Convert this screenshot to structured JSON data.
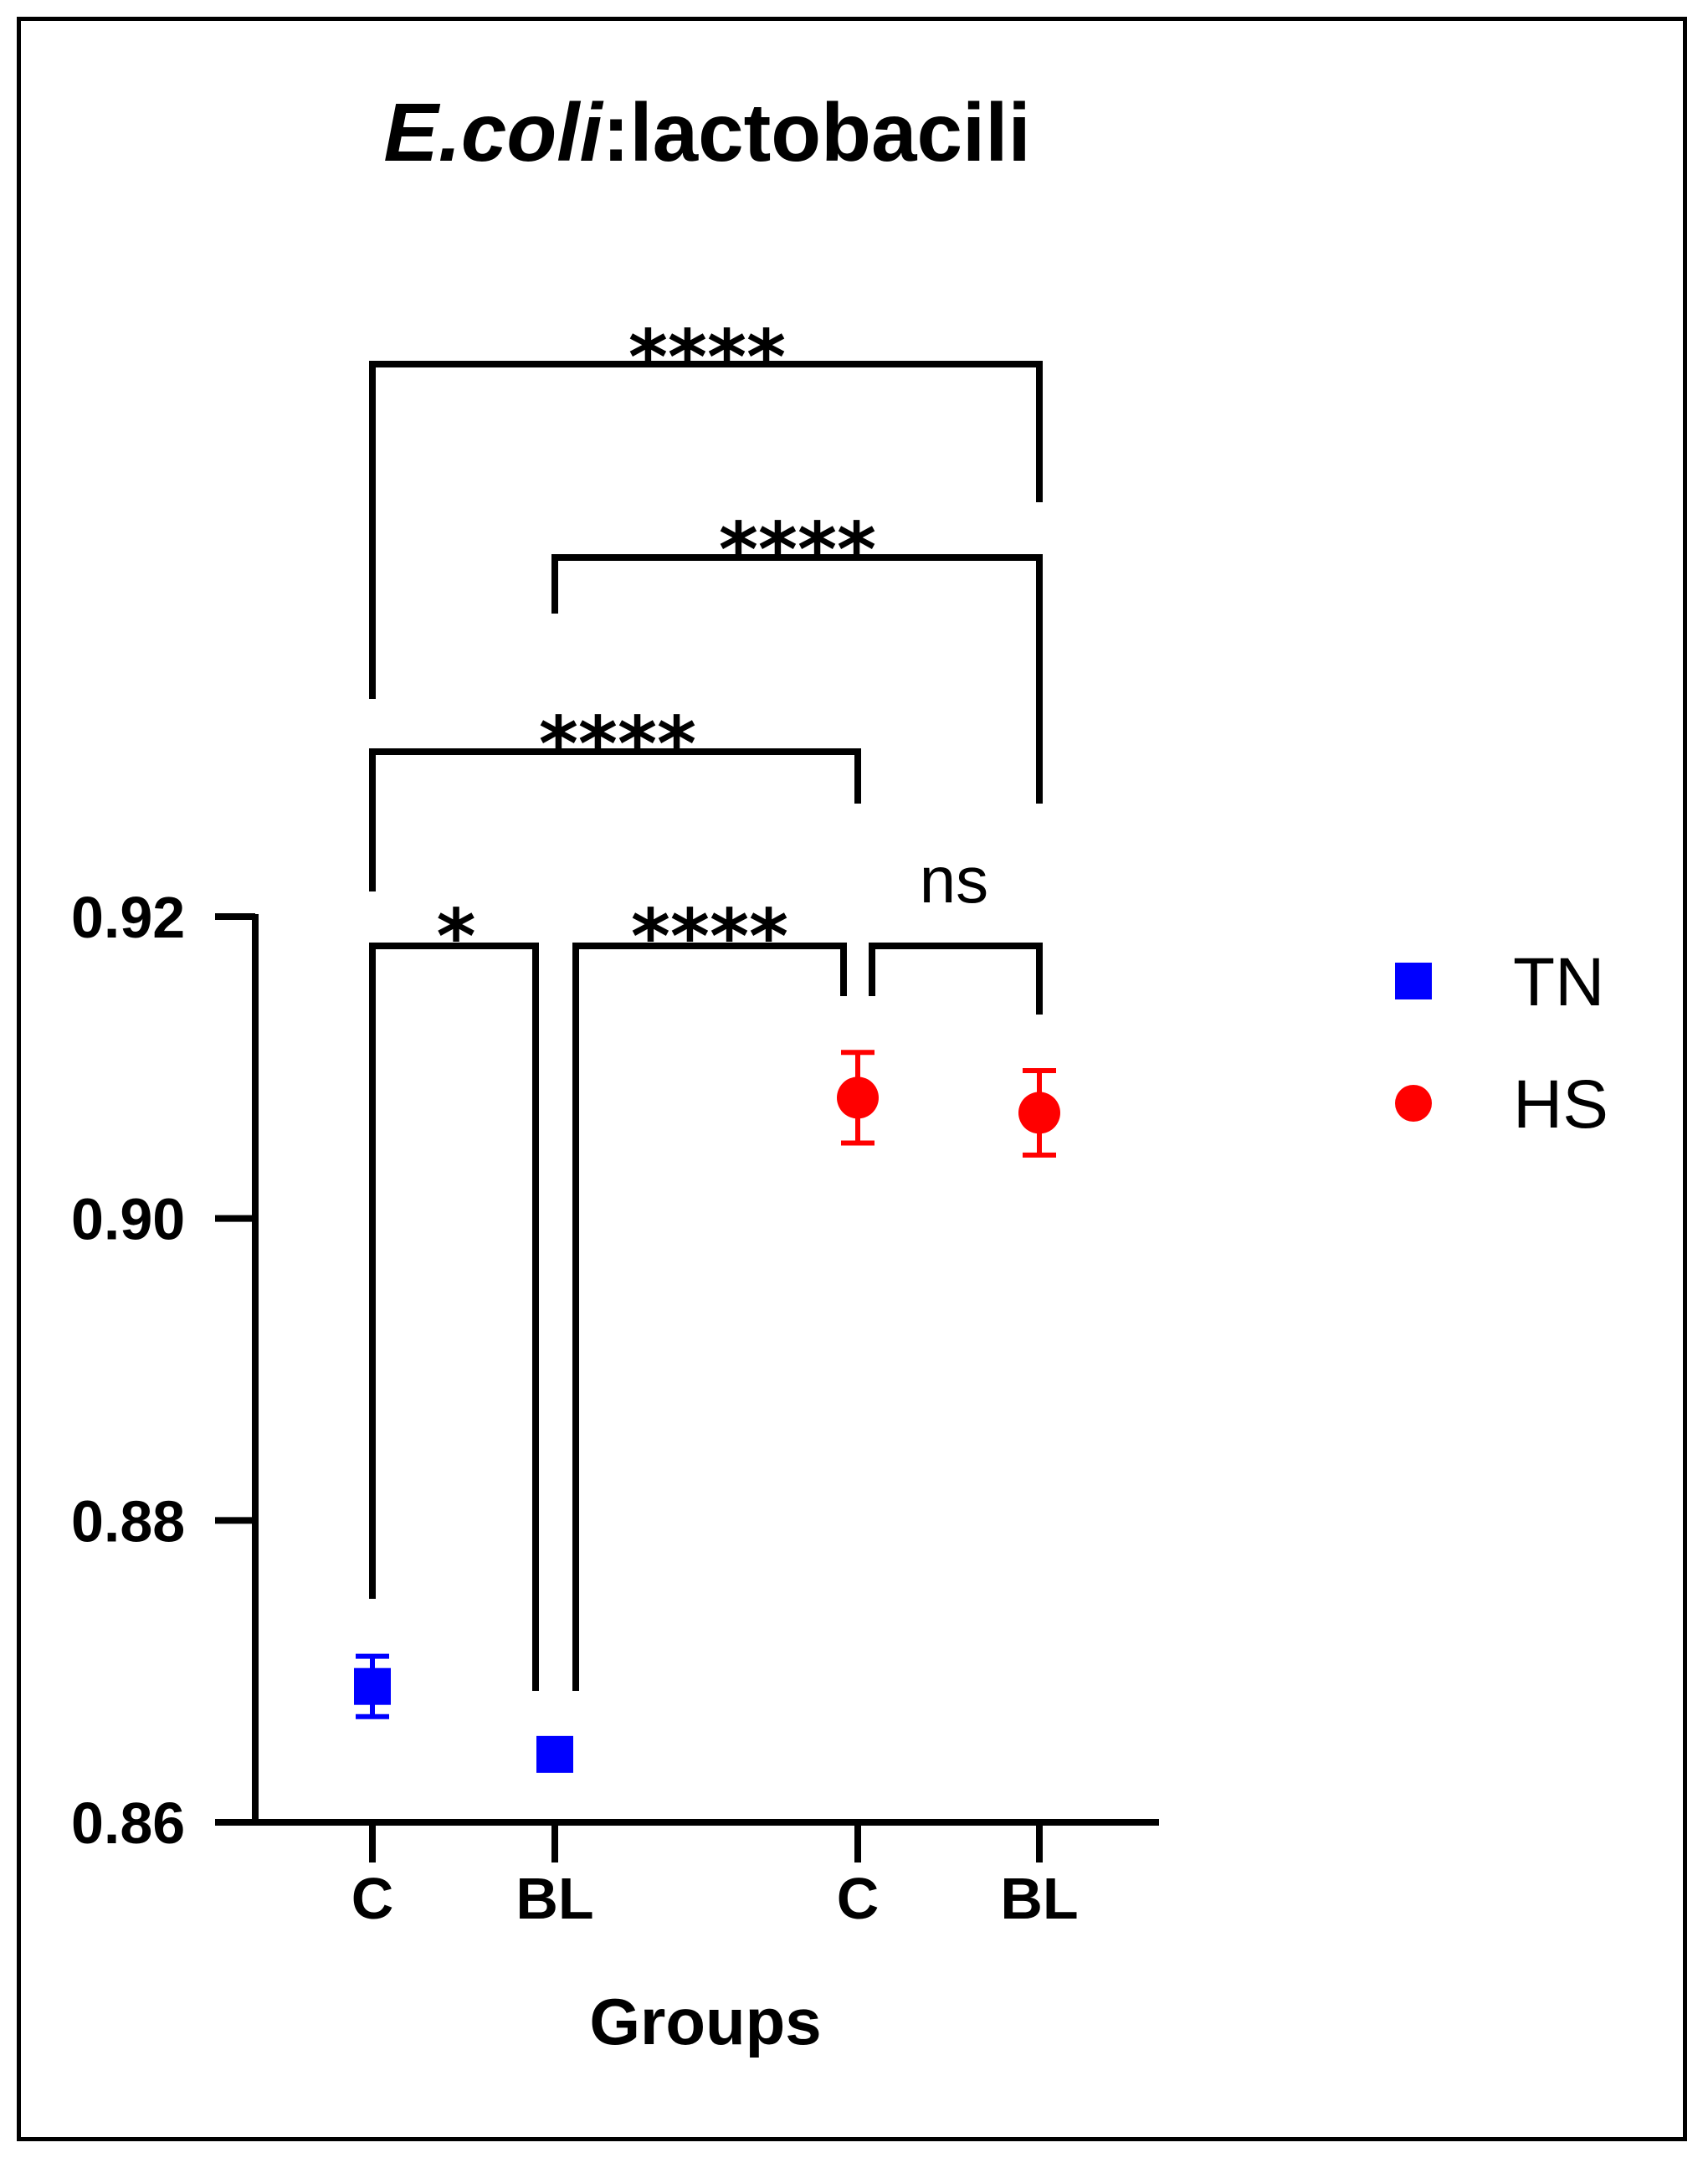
{
  "chart_data": {
    "type": "scatter",
    "title_italic": "E.coli",
    "title_rest": ":lactobacili",
    "xlabel": "Groups",
    "ylabel": "",
    "ylim": [
      0.86,
      0.92
    ],
    "yticks": [
      "0.86",
      "0.88",
      "0.90",
      "0.92"
    ],
    "categories": [
      "C",
      "BL",
      "C",
      "BL"
    ],
    "series": [
      {
        "name": "TN",
        "marker": "square",
        "color": "#0000ff",
        "points": [
          {
            "category_index": 0,
            "y": 0.869,
            "err": 0.002
          },
          {
            "category_index": 1,
            "y": 0.8645,
            "err": 0.0005
          }
        ]
      },
      {
        "name": "HS",
        "marker": "circle",
        "color": "#ff0000",
        "points": [
          {
            "category_index": 2,
            "y": 0.908,
            "err": 0.003
          },
          {
            "category_index": 3,
            "y": 0.907,
            "err": 0.0028
          }
        ]
      }
    ],
    "comparisons": [
      {
        "from": 0,
        "to": 1,
        "label": "*"
      },
      {
        "from": 1,
        "to": 2,
        "label": "****"
      },
      {
        "from": 2,
        "to": 3,
        "label": "ns"
      },
      {
        "from": 0,
        "to": 2,
        "label": "****"
      },
      {
        "from": 1,
        "to": 3,
        "label": "****"
      },
      {
        "from": 0,
        "to": 3,
        "label": "****"
      }
    ],
    "legend_position": "right"
  }
}
